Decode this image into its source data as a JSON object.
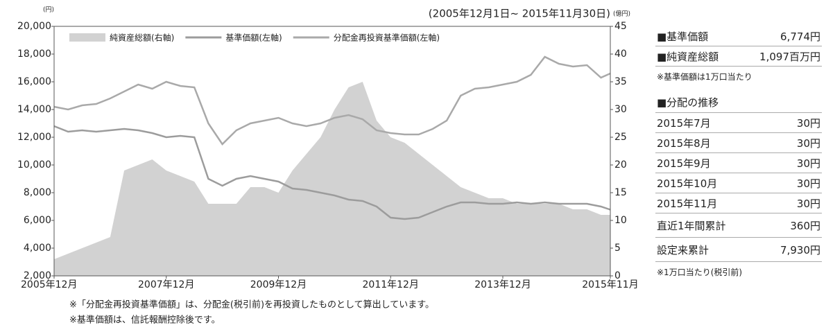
{
  "chart_data": {
    "type": "area_line",
    "date_range": "(2005年12月1日~ 2015年11月30日)",
    "y_unit": "(円)",
    "y2_unit": "(億円)",
    "x": [
      "2005-12",
      "2006-03",
      "2006-06",
      "2006-09",
      "2006-12",
      "2007-03",
      "2007-06",
      "2007-09",
      "2007-12",
      "2008-03",
      "2008-06",
      "2008-09",
      "2008-12",
      "2009-03",
      "2009-06",
      "2009-09",
      "2009-12",
      "2010-03",
      "2010-06",
      "2010-09",
      "2010-12",
      "2011-03",
      "2011-06",
      "2011-09",
      "2011-12",
      "2012-03",
      "2012-06",
      "2012-09",
      "2012-12",
      "2013-03",
      "2013-06",
      "2013-09",
      "2013-12",
      "2014-03",
      "2014-06",
      "2014-09",
      "2014-12",
      "2015-03",
      "2015-06",
      "2015-09",
      "2015-11"
    ],
    "xlim": [
      "2005-12",
      "2015-11"
    ],
    "xticks": [
      {
        "value": "2005-12",
        "label": "2005年12月"
      },
      {
        "value": "2007-12",
        "label": "2007年12月"
      },
      {
        "value": "2009-12",
        "label": "2009年12月"
      },
      {
        "value": "2011-12",
        "label": "2011年12月"
      },
      {
        "value": "2013-12",
        "label": "2013年12月"
      },
      {
        "value": "2015-11",
        "label": "2015年11月"
      }
    ],
    "ylim": [
      2000,
      20000
    ],
    "yticks": [
      {
        "value": 2000,
        "label": "2,000"
      },
      {
        "value": 4000,
        "label": "4,000"
      },
      {
        "value": 6000,
        "label": "6,000"
      },
      {
        "value": 8000,
        "label": "8,000"
      },
      {
        "value": 10000,
        "label": "10,000"
      },
      {
        "value": 12000,
        "label": "12,000"
      },
      {
        "value": 14000,
        "label": "14,000"
      },
      {
        "value": 16000,
        "label": "16,000"
      },
      {
        "value": 18000,
        "label": "18,000"
      },
      {
        "value": 20000,
        "label": "20,000"
      }
    ],
    "y2lim": [
      0,
      45
    ],
    "y2ticks": [
      0,
      5,
      10,
      15,
      20,
      25,
      30,
      35,
      40,
      45
    ],
    "series": [
      {
        "name": "純資産総額(右軸)",
        "kind": "area",
        "axis": "y2",
        "color": "#d2d2d2",
        "values": [
          3,
          4,
          5,
          6,
          7,
          19,
          20,
          21,
          19,
          18,
          17,
          13,
          13,
          13,
          16,
          16,
          15,
          19,
          22,
          25,
          30,
          34,
          35,
          28,
          25,
          24,
          22,
          20,
          18,
          16,
          15,
          14,
          14,
          13,
          13,
          13,
          13,
          12,
          12,
          11,
          11
        ]
      },
      {
        "name": "基準価額(左軸)",
        "kind": "line",
        "color": "#9c9c9c",
        "values": [
          12800,
          12400,
          12500,
          12400,
          12500,
          12600,
          12500,
          12300,
          12000,
          12100,
          12000,
          9000,
          8500,
          9000,
          9200,
          9000,
          8800,
          8300,
          8200,
          8000,
          7800,
          7500,
          7400,
          7000,
          6200,
          6100,
          6200,
          6600,
          7000,
          7300,
          7300,
          7200,
          7200,
          7300,
          7200,
          7300,
          7200,
          7200,
          7200,
          7000,
          6774
        ]
      },
      {
        "name": "分配金再投資基準価額(左軸)",
        "kind": "line",
        "color": "#a9a9a9",
        "values": [
          14200,
          14000,
          14300,
          14400,
          14800,
          15300,
          15800,
          15500,
          16000,
          15700,
          15600,
          13000,
          11500,
          12500,
          13000,
          13200,
          13400,
          13000,
          12800,
          13000,
          13400,
          13600,
          13300,
          12500,
          12300,
          12200,
          12200,
          12600,
          13200,
          15000,
          15500,
          15600,
          15800,
          16000,
          16500,
          17800,
          17300,
          17100,
          17200,
          16300,
          16600
        ]
      }
    ],
    "legend": "top"
  },
  "notes": [
    "※「分配金再投資基準価額」は、分配金(税引前)を再投資したものとして算出しています。",
    "※基準価額は、信託報酬控除後です。"
  ],
  "side": {
    "summary": [
      {
        "label": "■基準価額",
        "value": "6,774円"
      },
      {
        "label": "■純資産総額",
        "value": "1,097百万円"
      }
    ],
    "summary_note": "※基準価額は1万口当たり",
    "dist_title": "■分配の推移",
    "dist_rows": [
      {
        "label": "2015年7月",
        "value": "30円"
      },
      {
        "label": "2015年8月",
        "value": "30円"
      },
      {
        "label": "2015年9月",
        "value": "30円"
      },
      {
        "label": "2015年10月",
        "value": "30円"
      },
      {
        "label": "2015年11月",
        "value": "30円"
      },
      {
        "label": "直近1年間累計",
        "value": "360円"
      },
      {
        "label": "設定来累計",
        "value": "7,930円"
      }
    ],
    "dist_note": "※1万口当たり(税引前)"
  }
}
